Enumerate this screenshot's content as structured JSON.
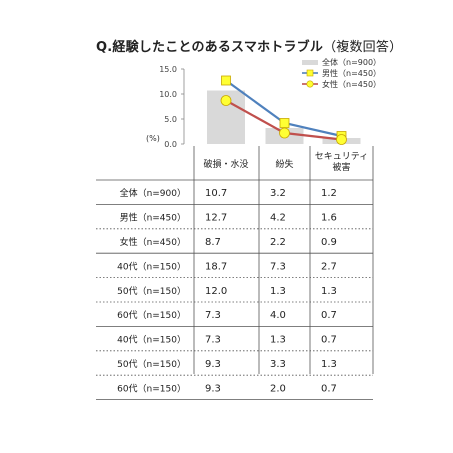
{
  "title": "Q.経験したことのあるスマホトラブル",
  "title_sub": "（複数回答）",
  "unit_label": "(%)",
  "chart_data": {
    "type": "bar",
    "categories": [
      "破損・水没",
      "紛失",
      "セキュリティ被害"
    ],
    "category_lines": [
      [
        "破損・水没"
      ],
      [
        "紛失"
      ],
      [
        "セキュリティ",
        "被害"
      ]
    ],
    "ylim": [
      0,
      15
    ],
    "yticks": [
      "0.0",
      "5.0",
      "10.0",
      "15.0"
    ],
    "series": [
      {
        "name": "全体（n=900）",
        "kind": "bar",
        "color": "#d9d9d9",
        "values": [
          10.7,
          3.2,
          1.2
        ]
      },
      {
        "name": "男性（n=450）",
        "kind": "line",
        "color": "#4f81bd",
        "marker": "square",
        "marker_color": "#ffff33",
        "values": [
          12.7,
          4.2,
          1.6
        ]
      },
      {
        "name": "女性（n=450）",
        "kind": "line",
        "color": "#c0504d",
        "marker": "circle",
        "marker_color": "#ffff33",
        "values": [
          8.7,
          2.2,
          0.9
        ]
      }
    ],
    "legend_position": "top-right"
  },
  "table": {
    "rows": [
      {
        "label": "全体（n=900）",
        "values": [
          "10.7",
          "3.2",
          "1.2"
        ],
        "sep": "solid"
      },
      {
        "label": "男性（n=450）",
        "values": [
          "12.7",
          "4.2",
          "1.6"
        ],
        "sep": "dotted"
      },
      {
        "label": "女性（n=450）",
        "values": [
          "8.7",
          "2.2",
          "0.9"
        ],
        "sep": "solid"
      },
      {
        "label": "40代（n=150）",
        "values": [
          "18.7",
          "7.3",
          "2.7"
        ],
        "sep": "dotted"
      },
      {
        "label": "50代（n=150）",
        "values": [
          "12.0",
          "1.3",
          "1.3"
        ],
        "sep": "dotted"
      },
      {
        "label": "60代（n=150）",
        "values": [
          "7.3",
          "4.0",
          "0.7"
        ],
        "sep": "solid"
      },
      {
        "label": "40代（n=150）",
        "values": [
          "7.3",
          "1.3",
          "0.7"
        ],
        "sep": "dotted"
      },
      {
        "label": "50代（n=150）",
        "values": [
          "9.3",
          "3.3",
          "1.3"
        ],
        "sep": "dotted"
      },
      {
        "label": "60代（n=150）",
        "values": [
          "9.3",
          "2.0",
          "0.7"
        ],
        "sep": "solid"
      }
    ]
  }
}
